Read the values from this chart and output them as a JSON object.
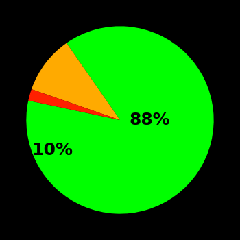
{
  "slices": [
    88,
    10,
    2
  ],
  "colors": [
    "#00ff00",
    "#ffaa00",
    "#ff2000"
  ],
  "labels": [
    "88%",
    "10%",
    ""
  ],
  "background_color": "#000000",
  "label_fontsize": 18,
  "label_fontweight": "bold",
  "startangle": 168,
  "figsize": [
    3.5,
    3.5
  ],
  "dpi": 100
}
